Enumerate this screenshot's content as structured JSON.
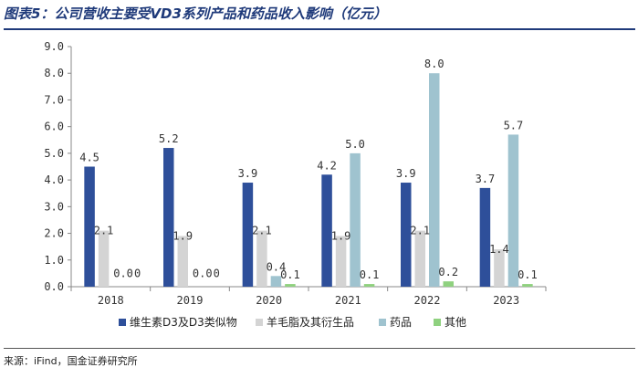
{
  "title": "图表5：公司营收主要受VD3系列产品和药品收入影响（亿元）",
  "source": "来源：iFind，国金证券研究所",
  "chart_data": {
    "type": "bar",
    "categories": [
      "2018",
      "2019",
      "2020",
      "2021",
      "2022",
      "2023"
    ],
    "ylim": [
      0,
      9
    ],
    "yticks": [
      "0.0",
      "1.0",
      "2.0",
      "3.0",
      "4.0",
      "5.0",
      "6.0",
      "7.0",
      "8.0",
      "9.0"
    ],
    "legend_position": "bottom",
    "grid": false,
    "series": [
      {
        "name": "维生素D3及D3类似物",
        "color": "#2e4f9a",
        "values": [
          4.5,
          5.2,
          3.9,
          4.2,
          3.9,
          3.7
        ],
        "labels": [
          "4.5",
          "5.2",
          "3.9",
          "4.2",
          "3.9",
          "3.7"
        ]
      },
      {
        "name": "羊毛脂及其衍生品",
        "color": "#d4d4d4",
        "values": [
          2.1,
          1.9,
          2.1,
          1.9,
          2.1,
          1.4
        ],
        "labels": [
          "2.1",
          "1.9",
          "2.1",
          "1.9",
          "2.1",
          "1.4"
        ]
      },
      {
        "name": "药品",
        "color": "#9fc3cf",
        "values": [
          0.0,
          0.0,
          0.4,
          5.0,
          8.0,
          5.7
        ],
        "labels": [
          "0.0",
          "0.0",
          "0.4",
          "5.0",
          "8.0",
          "5.7"
        ]
      },
      {
        "name": "其他",
        "color": "#8fd17f",
        "values": [
          0.0,
          0.0,
          0.1,
          0.1,
          0.2,
          0.1
        ],
        "labels": [
          "0",
          "0",
          "0.1",
          "0.1",
          "0.2",
          "0.1"
        ]
      }
    ]
  }
}
